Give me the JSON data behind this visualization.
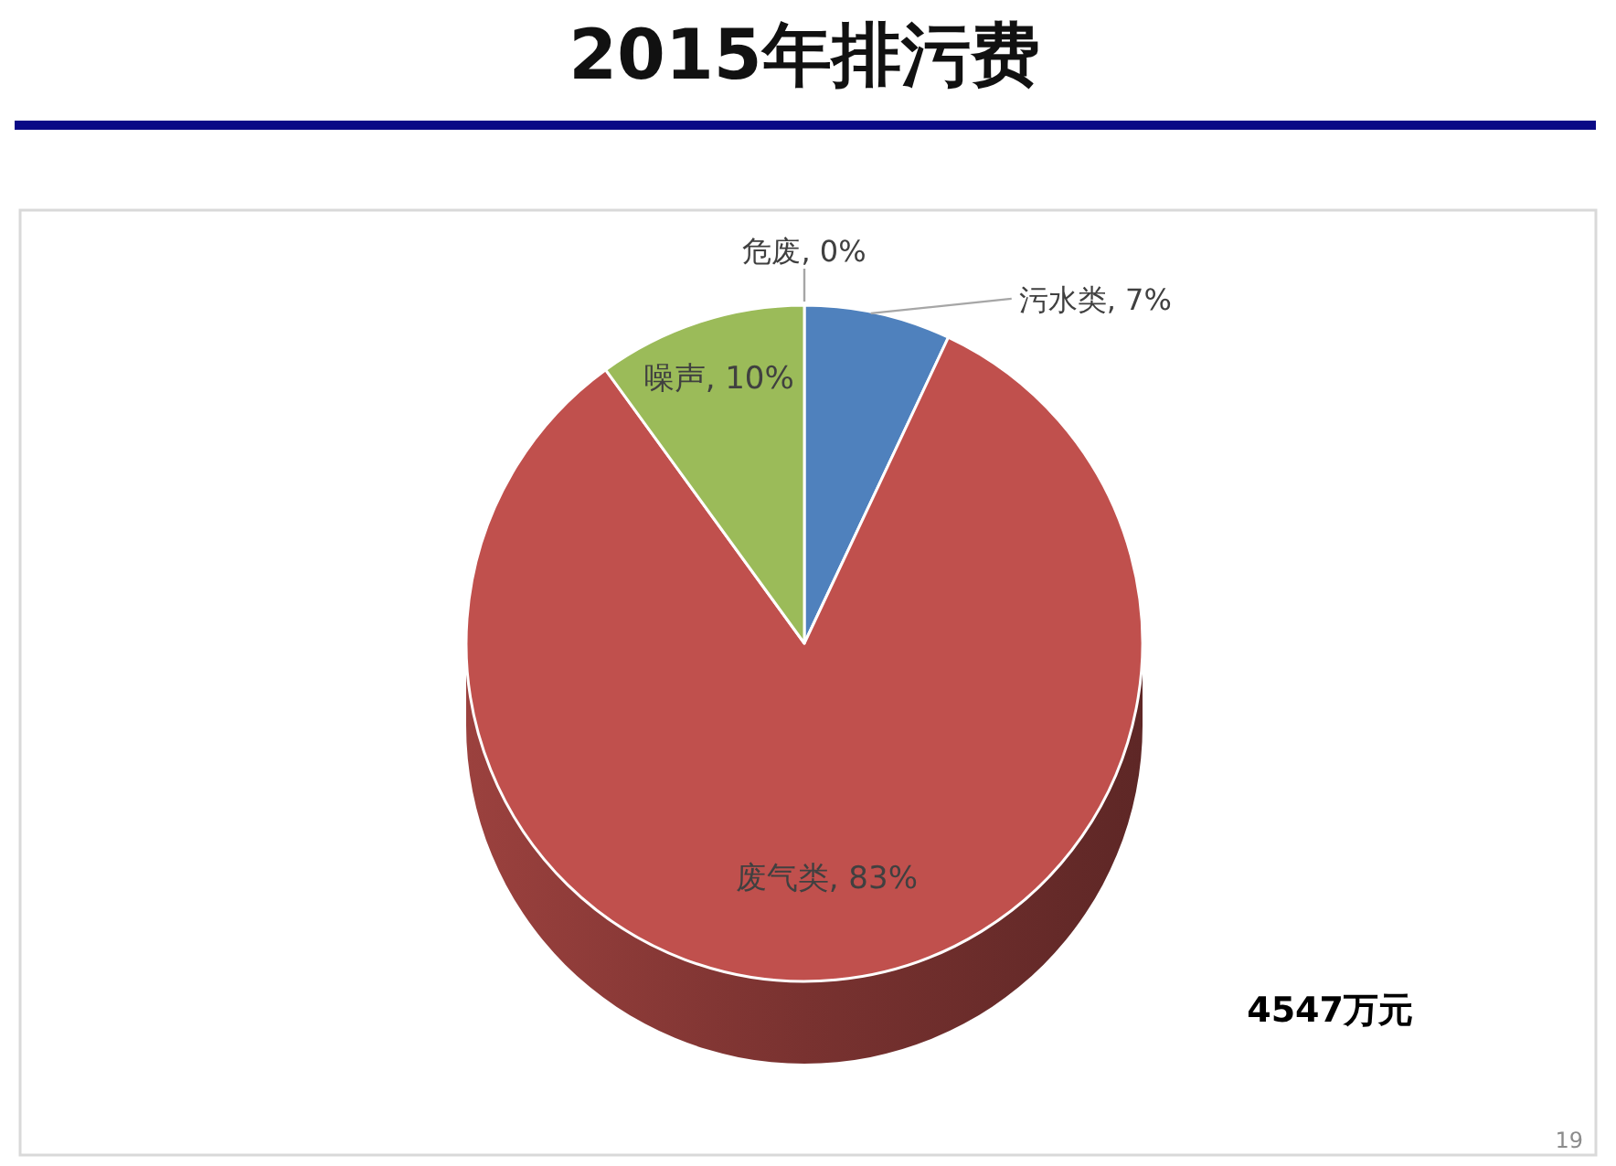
{
  "chart_data": {
    "type": "pie",
    "title": "2015年排污费",
    "categories": [
      "污水类",
      "废气类",
      "噪声",
      "危废"
    ],
    "values": [
      7,
      83,
      10,
      0
    ],
    "colors": [
      "#4f81bd",
      "#c0504d",
      "#9bbb59",
      "#8064a2"
    ],
    "value_labels": [
      ", 7%",
      ", 83%",
      ", 10%",
      ", 0%"
    ],
    "annotations": [
      "4547万元",
      "19"
    ]
  }
}
